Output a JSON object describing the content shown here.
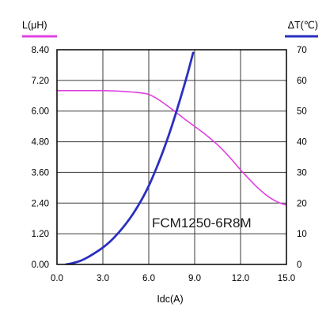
{
  "chart_data": {
    "type": "line",
    "title": "",
    "xlabel": "Idc(A)",
    "ylabel_left": "L(μH)",
    "ylabel_right": "ΔT(℃)",
    "annotation": "FCM1250-6R8M",
    "xlim": [
      0,
      15
    ],
    "ylim_left": [
      0,
      8.4
    ],
    "ylim_right": [
      0,
      70
    ],
    "x_ticks": [
      "0.0",
      "3.0",
      "6.0",
      "9.0",
      "12.0",
      "15.0"
    ],
    "y_left_ticks": [
      "0.00",
      "1.20",
      "2.40",
      "3.60",
      "4.80",
      "6.00",
      "7.20",
      "8.40"
    ],
    "y_right_ticks": [
      "0",
      "10",
      "20",
      "30",
      "40",
      "50",
      "60",
      "70"
    ],
    "grid": true,
    "series": [
      {
        "axis": "left",
        "color": "#e040e0",
        "x": [
          0,
          1,
          2,
          3,
          4,
          5,
          5.5,
          6,
          6.5,
          7,
          7.5,
          8,
          8.5,
          9,
          9.5,
          10,
          10.5,
          11,
          11.5,
          12,
          12.5,
          13,
          13.5,
          14,
          14.5,
          15
        ],
        "y": [
          6.8,
          6.8,
          6.8,
          6.8,
          6.78,
          6.74,
          6.71,
          6.65,
          6.5,
          6.3,
          6.08,
          5.85,
          5.62,
          5.4,
          5.18,
          4.94,
          4.68,
          4.38,
          4.05,
          3.7,
          3.38,
          3.07,
          2.8,
          2.58,
          2.42,
          2.32
        ]
      },
      {
        "axis": "right",
        "color": "#2a2fc0",
        "x": [
          0.6,
          1,
          1.5,
          2,
          2.5,
          3,
          3.5,
          4,
          4.5,
          5,
          5.5,
          6,
          6.5,
          7,
          7.5,
          8,
          8.5,
          8.9
        ],
        "y": [
          0,
          0.4,
          1.1,
          2.3,
          3.8,
          5.5,
          7.6,
          10.2,
          13.2,
          16.7,
          20.8,
          25.6,
          31.4,
          37.8,
          45.0,
          53.0,
          61.5,
          69.0
        ]
      }
    ],
    "legend": [
      {
        "label": "L(μH)",
        "color": "#e040e0",
        "position": "top-left"
      },
      {
        "label": "ΔT(℃)",
        "color": "#2a2fc0",
        "position": "top-right"
      }
    ]
  }
}
